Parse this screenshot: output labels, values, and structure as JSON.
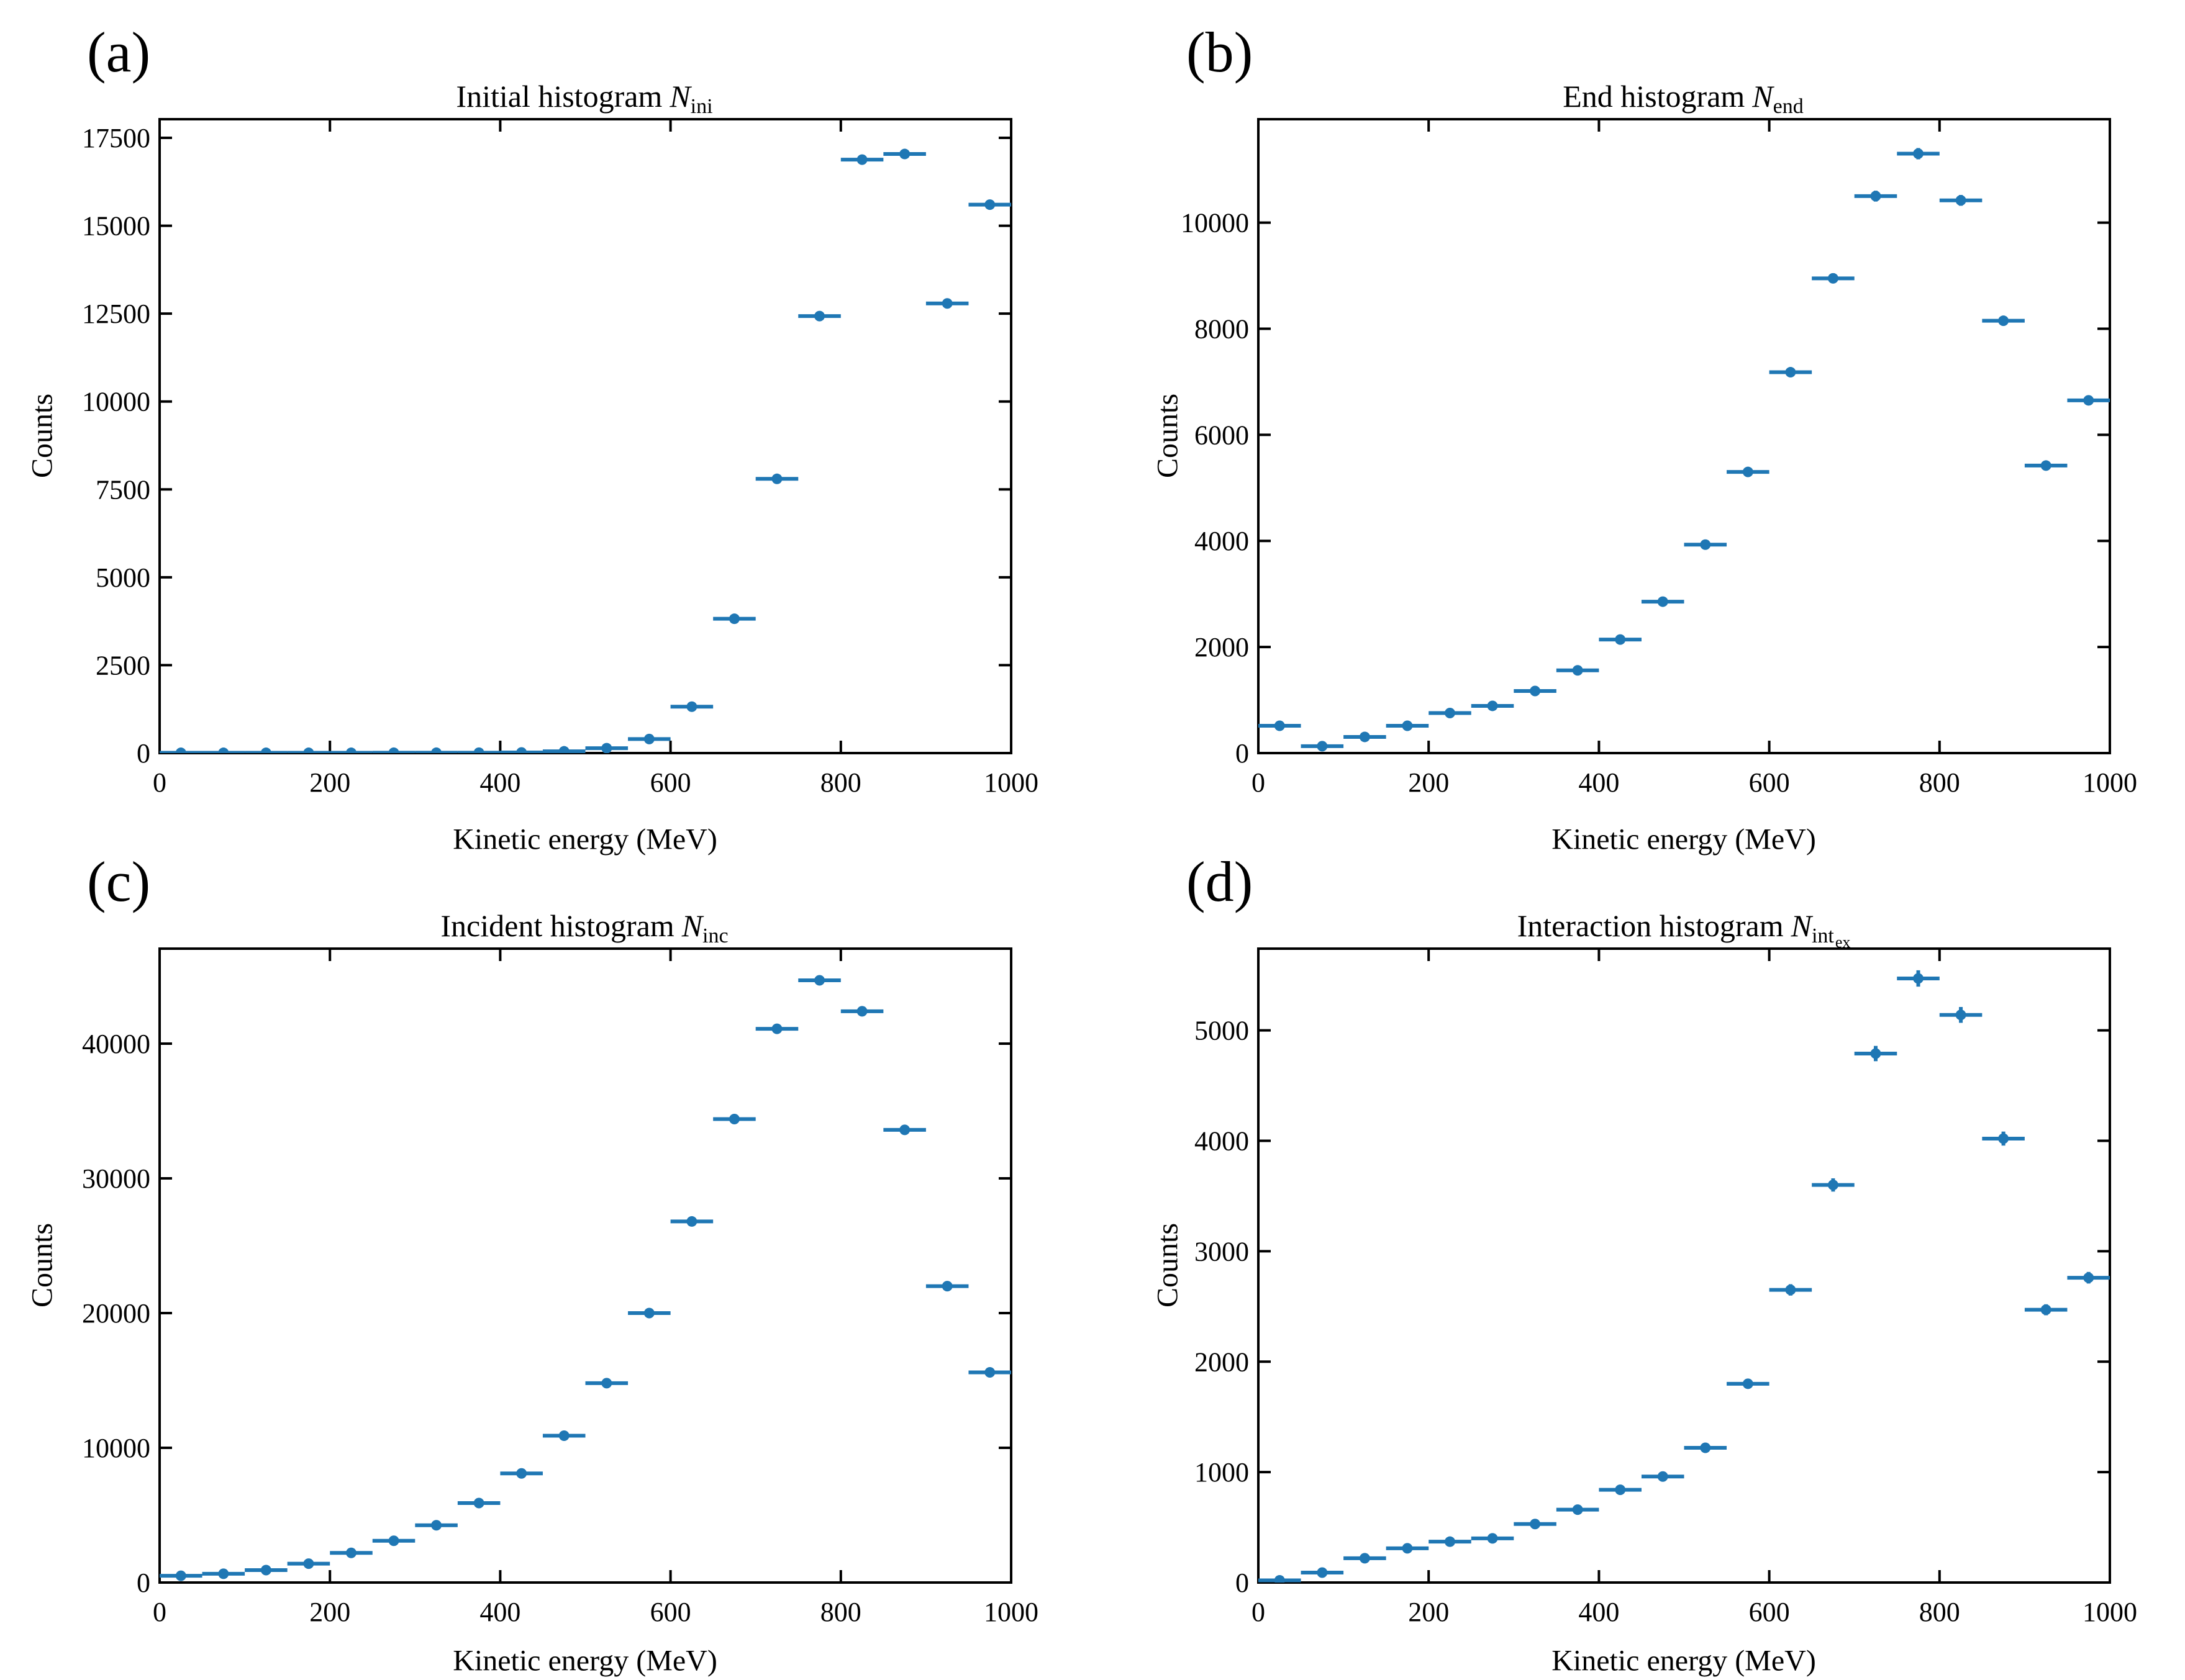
{
  "figure": {
    "xlabel": "Kinetic energy (MeV)",
    "ylabel": "Counts",
    "colors": {
      "data": "#1f77b4",
      "axis": "#000000",
      "background": "#ffffff"
    }
  },
  "chart_data": [
    {
      "type": "scatter",
      "panel_label": "(a)",
      "title": {
        "text": "Initial histogram",
        "symbol": "N",
        "subscript": "ini",
        "subsubscript": ""
      },
      "xlabel": "Kinetic energy (MeV)",
      "ylabel": "Counts",
      "xlim": [
        0,
        1000
      ],
      "ylim": [
        0,
        18030
      ],
      "xticks": [
        0,
        200,
        400,
        600,
        800,
        1000
      ],
      "yticks": [
        0,
        2500,
        5000,
        7500,
        10000,
        12500,
        15000,
        17500
      ],
      "bin_width": 50,
      "xerr": 25,
      "yerr_mode": "sqrt",
      "marker_color": "#1f77b4",
      "x": [
        25,
        75,
        125,
        175,
        225,
        275,
        325,
        375,
        425,
        475,
        525,
        575,
        625,
        675,
        725,
        775,
        825,
        875,
        925,
        975
      ],
      "y": [
        8,
        8,
        8,
        8,
        8,
        10,
        10,
        12,
        18,
        50,
        140,
        400,
        1320,
        3820,
        7800,
        12430,
        16880,
        17040,
        12790,
        15600
      ]
    },
    {
      "type": "scatter",
      "panel_label": "(b)",
      "title": {
        "text": "End histogram",
        "symbol": "N",
        "subscript": "end",
        "subsubscript": ""
      },
      "xlabel": "Kinetic energy (MeV)",
      "ylabel": "Counts",
      "xlim": [
        0,
        1000
      ],
      "ylim": [
        0,
        11950
      ],
      "xticks": [
        0,
        200,
        400,
        600,
        800,
        1000
      ],
      "yticks": [
        0,
        2000,
        4000,
        6000,
        8000,
        10000
      ],
      "bin_width": 50,
      "xerr": 25,
      "yerr_mode": "sqrt",
      "marker_color": "#1f77b4",
      "x": [
        25,
        75,
        125,
        175,
        225,
        275,
        325,
        375,
        425,
        475,
        525,
        575,
        625,
        675,
        725,
        775,
        825,
        875,
        925,
        975
      ],
      "y": [
        515,
        130,
        305,
        515,
        755,
        890,
        1170,
        1560,
        2140,
        2855,
        3930,
        5300,
        7180,
        8950,
        10500,
        11300,
        10420,
        8150,
        5420,
        6650
      ]
    },
    {
      "type": "scatter",
      "panel_label": "(c)",
      "title": {
        "text": "Incident histogram",
        "symbol": "N",
        "subscript": "inc",
        "subsubscript": ""
      },
      "xlabel": "Kinetic energy (MeV)",
      "ylabel": "Counts",
      "xlim": [
        0,
        1000
      ],
      "ylim": [
        0,
        47050
      ],
      "xticks": [
        0,
        200,
        400,
        600,
        800,
        1000
      ],
      "yticks": [
        0,
        10000,
        20000,
        30000,
        40000
      ],
      "bin_width": 50,
      "xerr": 25,
      "yerr_mode": "sqrt",
      "marker_color": "#1f77b4",
      "x": [
        25,
        75,
        125,
        175,
        225,
        275,
        325,
        375,
        425,
        475,
        525,
        575,
        625,
        675,
        725,
        775,
        825,
        875,
        925,
        975
      ],
      "y": [
        500,
        650,
        920,
        1400,
        2200,
        3100,
        4250,
        5900,
        8100,
        10900,
        14800,
        20000,
        26800,
        34400,
        41100,
        44700,
        42400,
        33600,
        22000,
        15600
      ]
    },
    {
      "type": "scatter",
      "panel_label": "(d)",
      "title": {
        "text": "Interaction histogram",
        "symbol": "N",
        "subscript": "int",
        "subsubscript": "ex"
      },
      "xlabel": "Kinetic energy (MeV)",
      "ylabel": "Counts",
      "xlim": [
        0,
        1000
      ],
      "ylim": [
        0,
        5740
      ],
      "xticks": [
        0,
        200,
        400,
        600,
        800,
        1000
      ],
      "yticks": [
        0,
        1000,
        2000,
        3000,
        4000,
        5000
      ],
      "bin_width": 50,
      "xerr": 25,
      "yerr_mode": "sqrt",
      "marker_color": "#1f77b4",
      "x": [
        25,
        75,
        125,
        175,
        225,
        275,
        325,
        375,
        425,
        475,
        525,
        575,
        625,
        675,
        725,
        775,
        825,
        875,
        925,
        975
      ],
      "y": [
        20,
        90,
        220,
        310,
        370,
        400,
        530,
        660,
        840,
        960,
        1220,
        1800,
        2650,
        3600,
        4790,
        5470,
        5140,
        4020,
        2470,
        2760
      ]
    }
  ]
}
